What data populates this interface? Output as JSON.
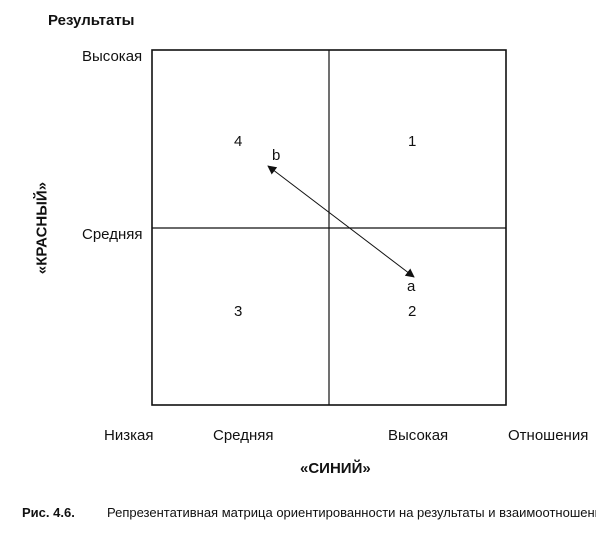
{
  "y_axis": {
    "title": "Результаты",
    "side_title": "«КРАСНЫЙ»",
    "ticks": [
      "Высокая",
      "Средняя"
    ]
  },
  "x_axis": {
    "title": "«СИНИЙ»",
    "ticks": [
      "Низкая",
      "Средняя",
      "Высокая",
      "Отношения"
    ]
  },
  "quadrants": [
    "1",
    "2",
    "3",
    "4"
  ],
  "points": {
    "a": "a",
    "b": "b"
  },
  "caption": {
    "number": "Рис. 4.6.",
    "text": "Репрезентативная матрица ориентированности на результаты и взаимоотношения"
  },
  "colors": {
    "line": "#111111"
  }
}
